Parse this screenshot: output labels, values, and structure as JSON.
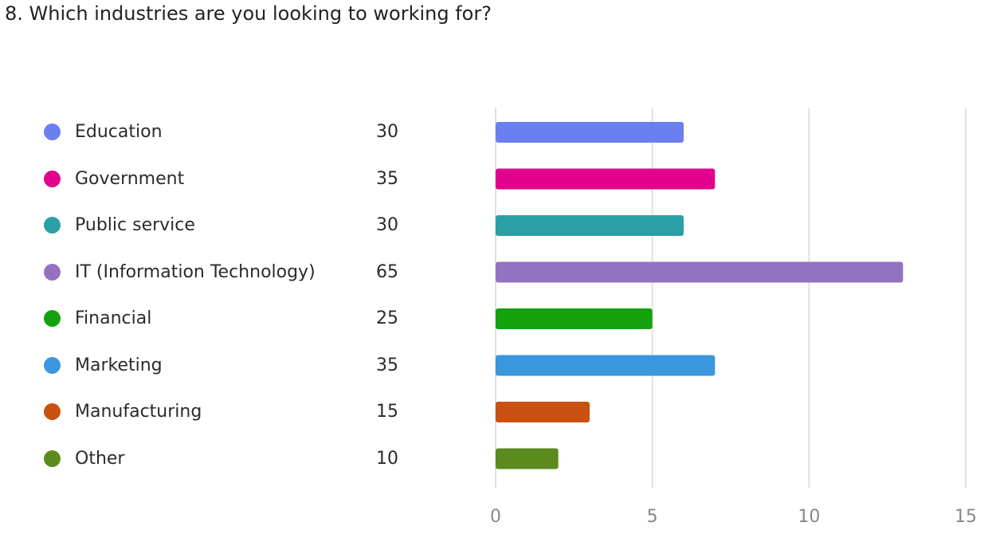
{
  "question": {
    "title": "8. Which industries are you looking to working for?"
  },
  "chart_data": {
    "type": "bar",
    "orientation": "horizontal",
    "categories": [
      "Education",
      "Government",
      "Public service",
      "IT (Information Technology)",
      "Financial",
      "Marketing",
      "Manufacturing",
      "Other"
    ],
    "legend_counts": [
      "30",
      "35",
      "30",
      "65",
      "25",
      "35",
      "15",
      "10"
    ],
    "values": [
      6,
      7,
      6,
      13,
      5,
      7,
      3,
      2
    ],
    "colors": [
      "#6b7ff0",
      "#e3008c",
      "#2aa0a4",
      "#9373c0",
      "#13a10e",
      "#3a96dd",
      "#ca5010",
      "#5b8a1e"
    ],
    "x_ticks": [
      "0",
      "5",
      "10",
      "15"
    ],
    "xlim": [
      0,
      15
    ],
    "grid": true,
    "legend_position": "left"
  }
}
